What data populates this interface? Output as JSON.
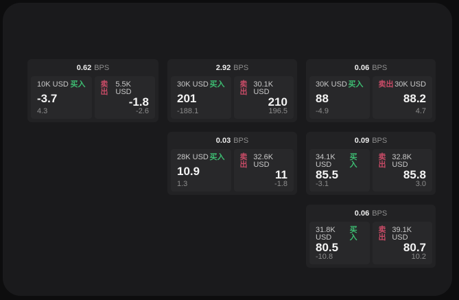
{
  "labels": {
    "buy": "买入",
    "sell": "卖出",
    "bps_unit": "BPS"
  },
  "colors": {
    "buy_green": "#3dbd72",
    "sell_red": "#c74b66",
    "panel_bg": "#1a1a1c",
    "card_bg": "#222224",
    "tile_bg": "#28282a"
  },
  "cards": [
    {
      "col": 1,
      "row": 1,
      "bps": "0.62",
      "buy": {
        "size": "10K USD",
        "value": "-3.7",
        "delta": "4.3"
      },
      "sell": {
        "size": "5.5K USD",
        "value": "-1.8",
        "delta": "-2.6"
      }
    },
    {
      "col": 2,
      "row": 1,
      "bps": "2.92",
      "buy": {
        "size": "30K USD",
        "value": "201",
        "delta": "-188.1"
      },
      "sell": {
        "size": "30.1K USD",
        "value": "210",
        "delta": "196.5"
      }
    },
    {
      "col": 3,
      "row": 1,
      "bps": "0.06",
      "buy": {
        "size": "30K USD",
        "value": "88",
        "delta": "-4.9"
      },
      "sell": {
        "size": "30K USD",
        "value": "88.2",
        "delta": "4.7"
      }
    },
    {
      "col": 2,
      "row": 2,
      "bps": "0.03",
      "buy": {
        "size": "28K USD",
        "value": "10.9",
        "delta": "1.3"
      },
      "sell": {
        "size": "32.6K USD",
        "value": "11",
        "delta": "-1.8"
      }
    },
    {
      "col": 3,
      "row": 2,
      "bps": "0.09",
      "buy": {
        "size": "34.1K USD",
        "value": "85.5",
        "delta": "-3.1"
      },
      "sell": {
        "size": "32.8K USD",
        "value": "85.8",
        "delta": "3.0"
      }
    },
    {
      "col": 3,
      "row": 3,
      "bps": "0.06",
      "buy": {
        "size": "31.8K USD",
        "value": "80.5",
        "delta": "-10.8"
      },
      "sell": {
        "size": "39.1K USD",
        "value": "80.7",
        "delta": "10.2"
      }
    }
  ]
}
